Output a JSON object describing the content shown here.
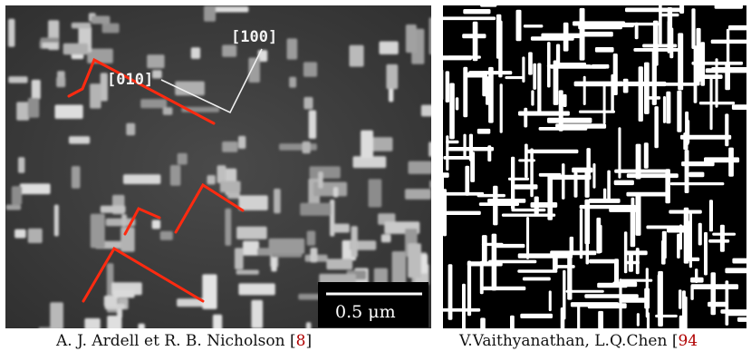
{
  "left_image": {
    "label_dir1": "[100]",
    "label_dir2": "[010]",
    "scale_bar": "0.5 μm"
  },
  "captions": {
    "left": {
      "authors": "A. J. Ardell et R. B. Nicholson ",
      "ref_open": "[",
      "ref_num": "8",
      "ref_close": "]"
    },
    "right": {
      "authors": "V.Vaithyanathan, L.Q.Chen ",
      "ref_open": "[",
      "ref_num": "94"
    }
  },
  "colors": {
    "annotation_red": "#ff2a10",
    "caption_ref": "#b00000"
  }
}
